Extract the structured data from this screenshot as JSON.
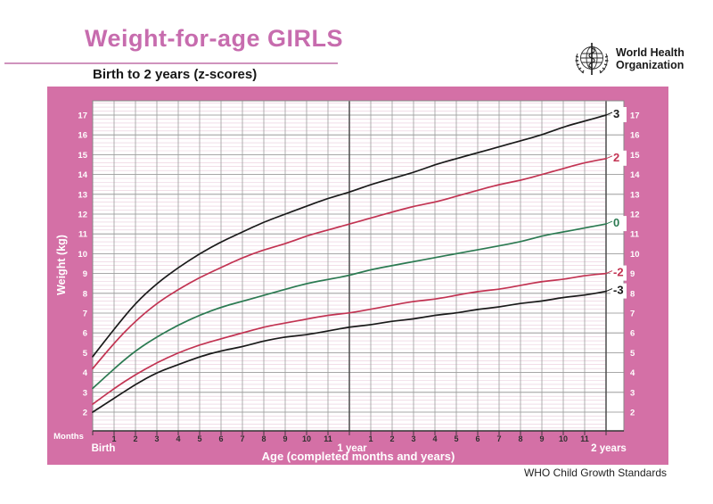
{
  "header": {
    "title": "Weight-for-age GIRLS",
    "subtitle": "Birth to 2 years (z-scores)",
    "logo": {
      "line1": "World Health",
      "line2": "Organization"
    }
  },
  "footer": {
    "credit": "WHO Child Growth Standards"
  },
  "colors": {
    "panel_pink": "#d470a6",
    "title_pink": "#c76cae",
    "plot_background": "#ffffff",
    "grid_major": "#8c8c8c",
    "grid_minor": "#e9cadb",
    "axis_dark": "#333333",
    "year_line": "#4d4d4d",
    "curve_black": "#1a1a1a",
    "curve_red": "#c23352",
    "curve_green": "#2c7a52",
    "axis_text_white": "#ffffff",
    "month_number_text": "#2f2f2f"
  },
  "chart_data": {
    "type": "line",
    "title": "Weight-for-age GIRLS",
    "subtitle": "Birth to 2 years (z-scores)",
    "xlabel": "Age (completed months and years)",
    "ylabel": "Weight (kg)",
    "x_axis_unit_label": "Months",
    "x_range_months": [
      0,
      24
    ],
    "x_major_labels": [
      {
        "month": 0,
        "label": "Birth"
      },
      {
        "month": 12,
        "label": "1 year"
      },
      {
        "month": 24,
        "label": "2 years"
      }
    ],
    "month_tick_labels_year1": [
      "1",
      "2",
      "3",
      "4",
      "5",
      "6",
      "7",
      "8",
      "9",
      "10",
      "11"
    ],
    "month_tick_labels_year2": [
      "1",
      "2",
      "3",
      "4",
      "5",
      "6",
      "7",
      "8",
      "9",
      "10",
      "11"
    ],
    "ylim": [
      2,
      17
    ],
    "yticks": [
      2,
      3,
      4,
      5,
      6,
      7,
      8,
      9,
      10,
      11,
      12,
      13,
      14,
      15,
      16,
      17
    ],
    "yticks_sides": "both",
    "grid": {
      "x_step_months": 1,
      "y_major_step_kg": 1,
      "y_minor_step_kg": 0.2,
      "grid_on": true
    },
    "legend_position": "curve-end-labels-right",
    "x": [
      0,
      1,
      2,
      3,
      4,
      5,
      6,
      7,
      8,
      9,
      10,
      11,
      12,
      13,
      14,
      15,
      16,
      17,
      18,
      19,
      20,
      21,
      22,
      23,
      24
    ],
    "series": [
      {
        "name": "3",
        "zscore": 3,
        "color": "#1a1a1a",
        "values": [
          4.8,
          6.2,
          7.5,
          8.5,
          9.3,
          10.0,
          10.6,
          11.1,
          11.6,
          12.0,
          12.4,
          12.8,
          13.1,
          13.5,
          13.8,
          14.1,
          14.5,
          14.8,
          15.1,
          15.4,
          15.7,
          16.0,
          16.4,
          16.7,
          17.0
        ]
      },
      {
        "name": "2",
        "zscore": 2,
        "color": "#c23352",
        "values": [
          4.2,
          5.5,
          6.6,
          7.5,
          8.2,
          8.8,
          9.3,
          9.8,
          10.2,
          10.5,
          10.9,
          11.2,
          11.5,
          11.8,
          12.1,
          12.4,
          12.6,
          12.9,
          13.2,
          13.5,
          13.7,
          14.0,
          14.3,
          14.6,
          14.8
        ]
      },
      {
        "name": "0",
        "zscore": 0,
        "color": "#2c7a52",
        "values": [
          3.2,
          4.2,
          5.1,
          5.8,
          6.4,
          6.9,
          7.3,
          7.6,
          7.9,
          8.2,
          8.5,
          8.7,
          8.9,
          9.2,
          9.4,
          9.6,
          9.8,
          10.0,
          10.2,
          10.4,
          10.6,
          10.9,
          11.1,
          11.3,
          11.5
        ]
      },
      {
        "name": "-2",
        "zscore": -2,
        "color": "#c23352",
        "values": [
          2.4,
          3.2,
          3.9,
          4.5,
          5.0,
          5.4,
          5.7,
          6.0,
          6.3,
          6.5,
          6.7,
          6.9,
          7.0,
          7.2,
          7.4,
          7.6,
          7.7,
          7.9,
          8.1,
          8.2,
          8.4,
          8.6,
          8.7,
          8.9,
          9.0
        ]
      },
      {
        "name": "-3",
        "zscore": -3,
        "color": "#1a1a1a",
        "values": [
          2.0,
          2.7,
          3.4,
          4.0,
          4.4,
          4.8,
          5.1,
          5.3,
          5.6,
          5.8,
          5.9,
          6.1,
          6.3,
          6.4,
          6.6,
          6.7,
          6.9,
          7.0,
          7.2,
          7.3,
          7.5,
          7.6,
          7.8,
          7.9,
          8.1
        ]
      }
    ]
  }
}
